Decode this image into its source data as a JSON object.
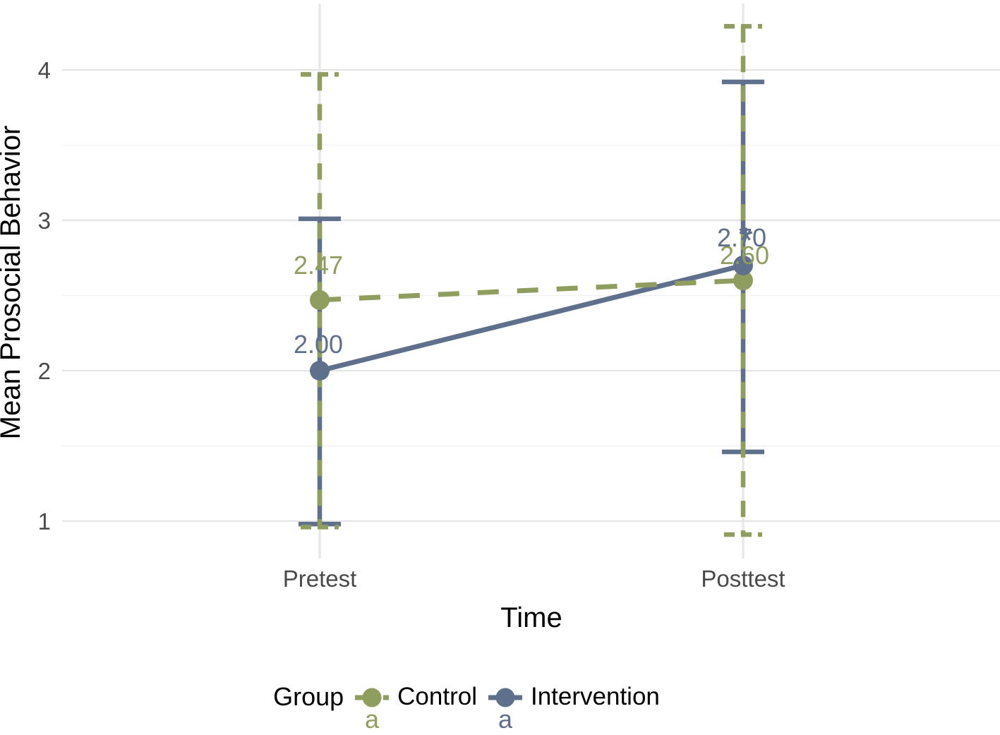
{
  "chart_data": {
    "type": "line",
    "title": "",
    "xlabel": "Time",
    "ylabel": "Mean Prosocial Behavior",
    "categories": [
      "Pretest",
      "Posttest"
    ],
    "yticks": [
      1,
      2,
      3,
      4
    ],
    "ylim": [
      0.75,
      4.45
    ],
    "grid": "horizontal major+minor gridlines, vertical gridline at each category, no axis lines",
    "legend": {
      "title": "Group",
      "position": "bottom",
      "key_letter": "a"
    },
    "series": [
      {
        "name": "Control",
        "color": "#8f9e5f",
        "linestyle": "dashed",
        "marker": "circle",
        "values": [
          2.47,
          2.6
        ],
        "value_labels": [
          "2.47",
          "2.60"
        ],
        "error_low": [
          0.96,
          0.91
        ],
        "error_high": [
          3.97,
          4.29
        ]
      },
      {
        "name": "Intervention",
        "color": "#5f708c",
        "linestyle": "solid",
        "marker": "circle",
        "values": [
          2.0,
          2.7
        ],
        "value_labels": [
          "2.00",
          "2.70"
        ],
        "error_low": [
          0.98,
          1.46
        ],
        "error_high": [
          3.01,
          3.92
        ]
      }
    ],
    "annotations": [
      {
        "text": "*",
        "category": "Posttest",
        "y": 2.89,
        "color": "#5f708c"
      }
    ]
  },
  "colors": {
    "background": "#ffffff",
    "grid_major": "#e4e4e4",
    "grid_minor": "#f1f1f1",
    "grid_vertical": "#e8e8e8",
    "tick_label": "#4a4a4a",
    "axis_title": "#000000"
  }
}
